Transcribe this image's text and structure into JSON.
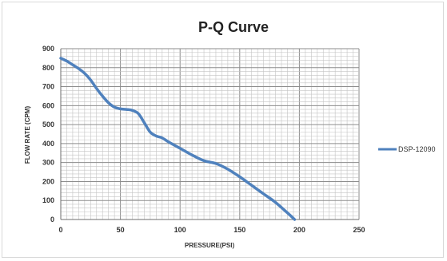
{
  "chart_data": {
    "type": "line",
    "title": "P-Q Curve",
    "xlabel": "PRESSURE(PSI)",
    "ylabel": "FLOW RATE (CPM)",
    "xlim": [
      0,
      250
    ],
    "ylim": [
      0,
      900
    ],
    "x_ticks": [
      "0",
      "50",
      "100",
      "150",
      "200",
      "250"
    ],
    "y_ticks": [
      "0",
      "100",
      "200",
      "300",
      "400",
      "500",
      "600",
      "700",
      "800",
      "900"
    ],
    "grid": true,
    "legend_position": "right",
    "series": [
      {
        "name": "DSP-12090",
        "color": "#4f81bd",
        "points": [
          [
            0,
            850
          ],
          [
            5,
            835
          ],
          [
            10,
            815
          ],
          [
            15,
            795
          ],
          [
            20,
            770
          ],
          [
            25,
            735
          ],
          [
            30,
            690
          ],
          [
            35,
            650
          ],
          [
            40,
            615
          ],
          [
            45,
            592
          ],
          [
            50,
            583
          ],
          [
            55,
            580
          ],
          [
            60,
            575
          ],
          [
            65,
            558
          ],
          [
            70,
            510
          ],
          [
            75,
            460
          ],
          [
            80,
            440
          ],
          [
            85,
            430
          ],
          [
            90,
            410
          ],
          [
            100,
            375
          ],
          [
            110,
            340
          ],
          [
            120,
            310
          ],
          [
            130,
            295
          ],
          [
            140,
            265
          ],
          [
            150,
            225
          ],
          [
            160,
            180
          ],
          [
            170,
            135
          ],
          [
            180,
            90
          ],
          [
            190,
            35
          ],
          [
            196,
            0
          ]
        ]
      }
    ]
  }
}
